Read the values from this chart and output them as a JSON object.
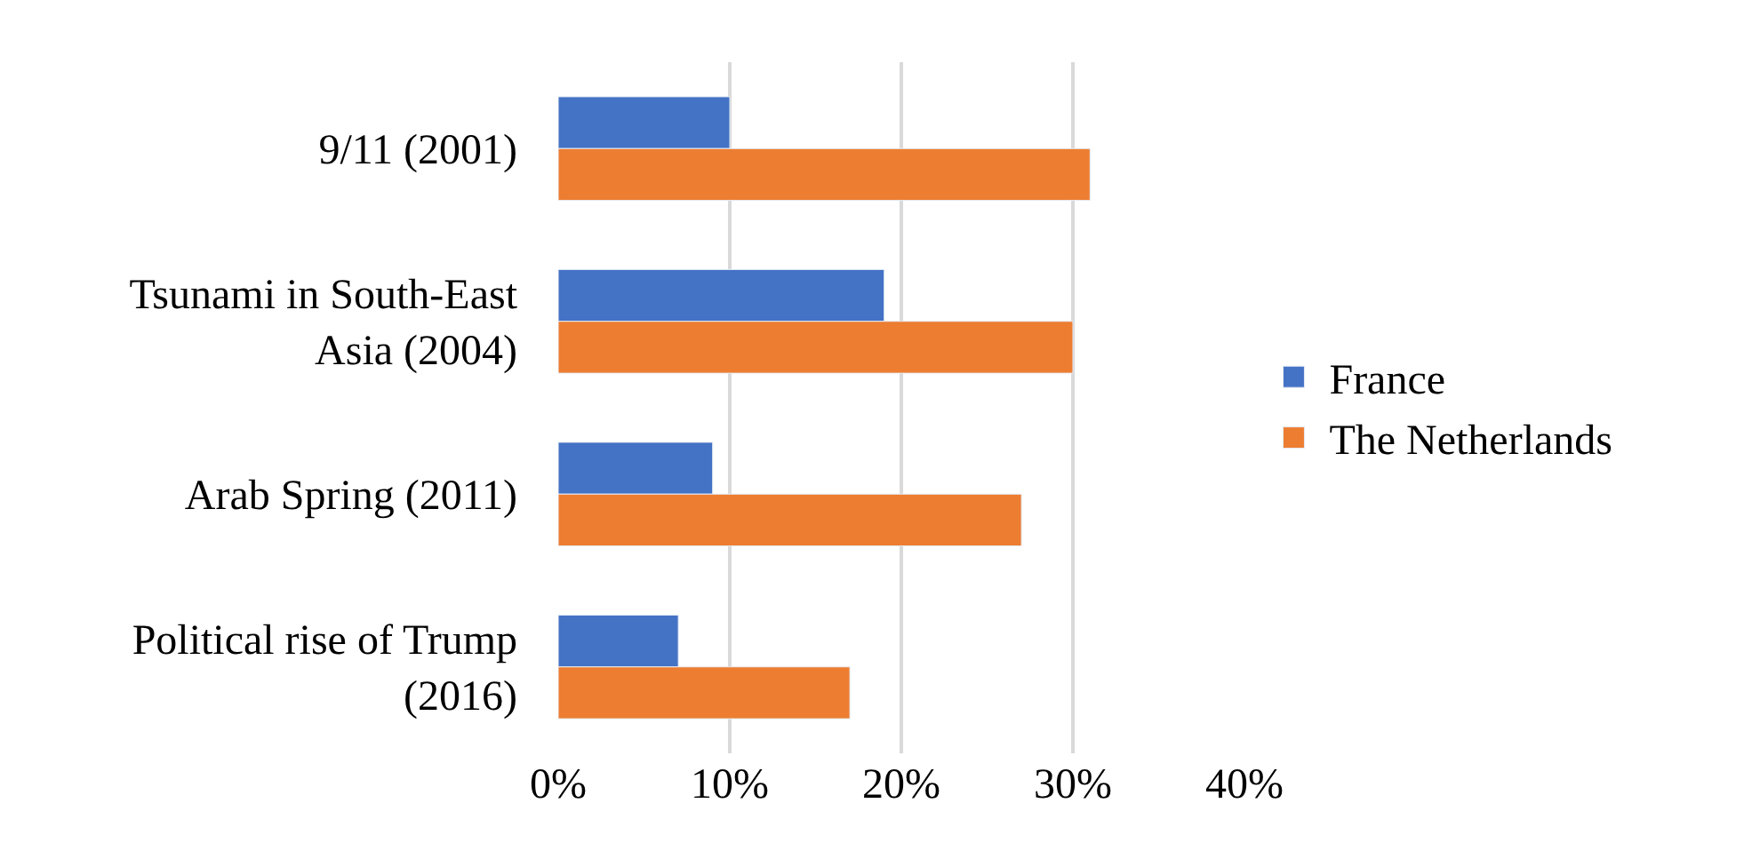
{
  "chart_data": {
    "type": "bar",
    "orientation": "horizontal",
    "categories": [
      "9/11 (2001)",
      "Tsunami in South-East Asia (2004)",
      "Arab Spring (2011)",
      "Political rise of Trump (2016)"
    ],
    "series": [
      {
        "name": "France",
        "color": "#4472c4",
        "values": [
          10,
          19,
          9,
          7
        ]
      },
      {
        "name": "The Netherlands",
        "color": "#ed7d31",
        "values": [
          31,
          30,
          27,
          17
        ]
      }
    ],
    "xlim": [
      0,
      40
    ],
    "xticks": [
      {
        "value": 0,
        "label": "0%"
      },
      {
        "value": 10,
        "label": "10%"
      },
      {
        "value": 20,
        "label": "20%"
      },
      {
        "value": 30,
        "label": "30%"
      },
      {
        "value": 40,
        "label": "40%"
      }
    ],
    "grid": "x",
    "legend": "right"
  }
}
